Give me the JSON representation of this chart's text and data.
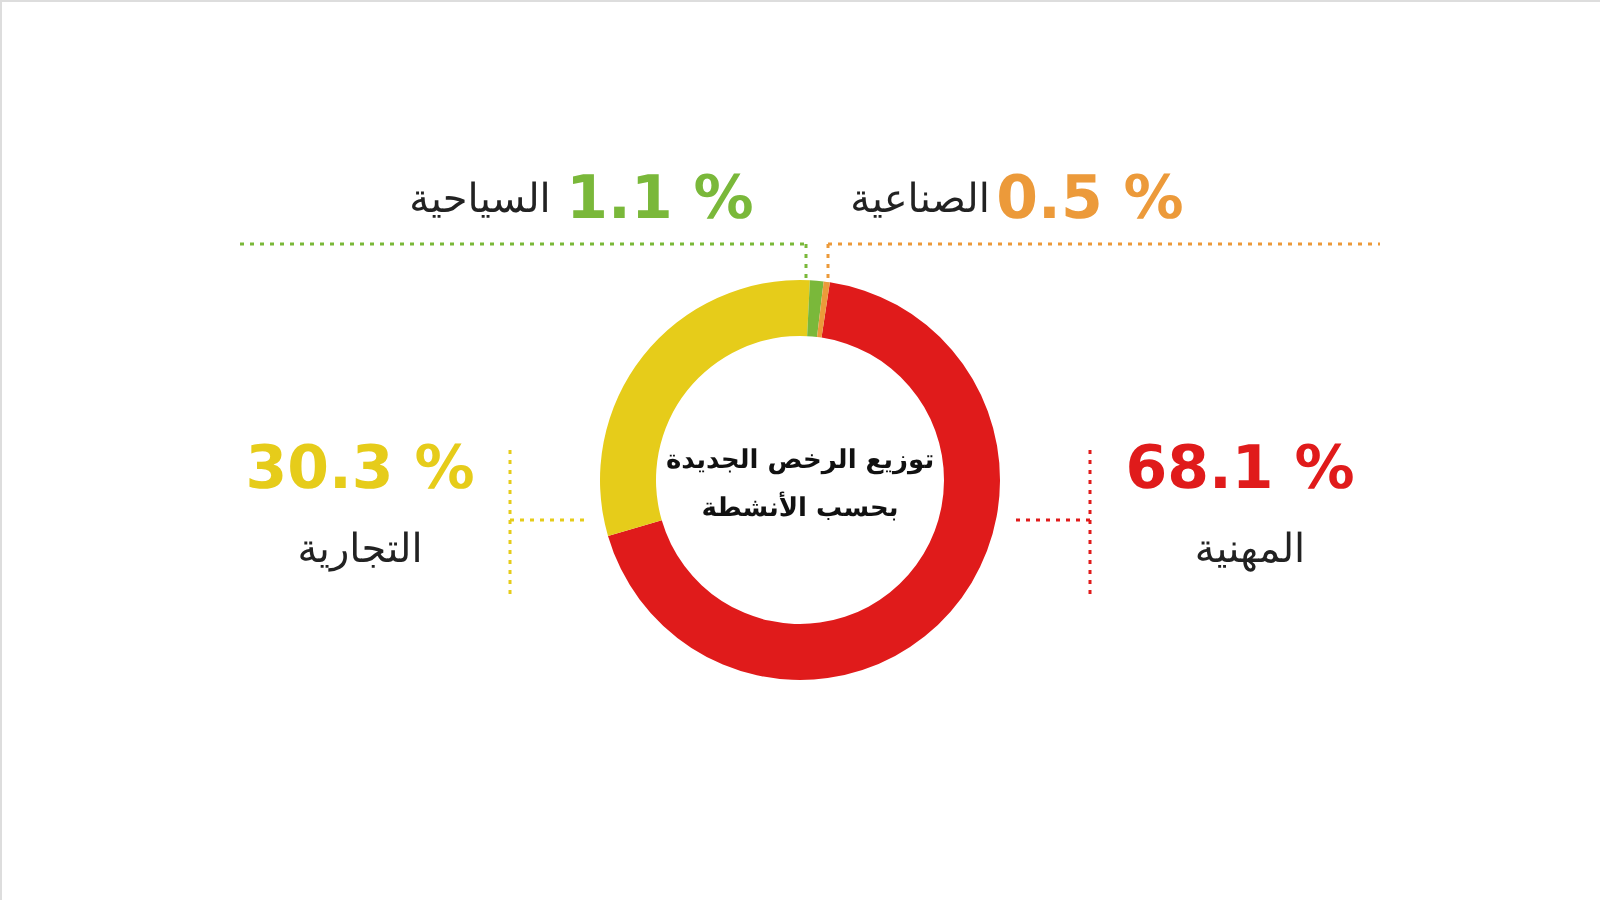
{
  "chart_data": {
    "type": "donut",
    "title": "توزيع الرخص الجديدة\nبحسب الأنشطة",
    "categories": [
      "المهنية",
      "التجارية",
      "السياحية",
      "الصناعية"
    ],
    "values": [
      68.1,
      30.3,
      1.1,
      0.5
    ],
    "colors": [
      "#e01b1b",
      "#e6cc1a",
      "#7ab83a",
      "#ec9a3a"
    ],
    "value_labels": [
      "68.1 %",
      "30.3 %",
      "1.1 %",
      "0.5 %"
    ]
  }
}
